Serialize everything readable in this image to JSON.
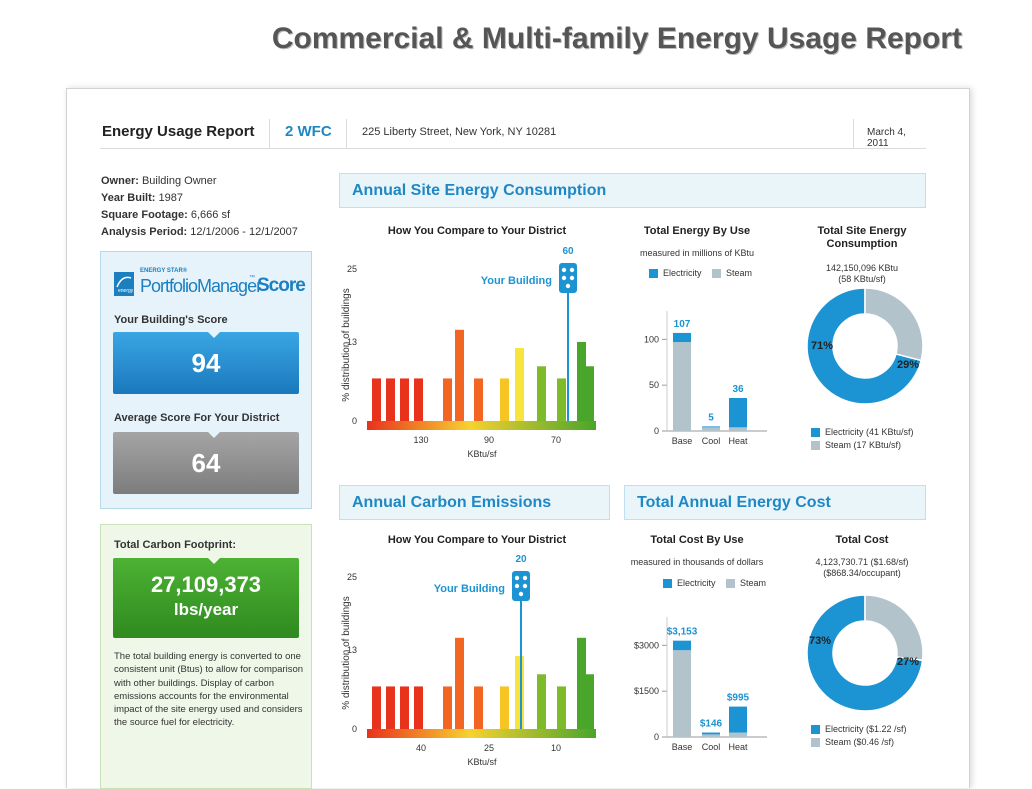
{
  "page_title": "Commercial & Multi-family Energy Usage Report",
  "header": {
    "report_label": "Energy Usage Report",
    "building_code": "2 WFC",
    "address": "225 Liberty Street, New York, NY 10281",
    "date": "March 4, 2011"
  },
  "info": {
    "owner_label": "Owner:",
    "owner": "Building Owner",
    "year_label": "Year Built:",
    "year": "1987",
    "sqft_label": "Square Footage:",
    "sqft": "6,666 sf",
    "period_label": "Analysis Period:",
    "period": "12/1/2006 - 12/1/2007"
  },
  "score": {
    "logo_small": "ENERGY STAR®",
    "logo_main": "PortfolioManager",
    "logo_tm": "™",
    "logo_score": "Score",
    "your_label": "Your Building's Score",
    "your_value": "94",
    "avg_label": "Average Score For Your District",
    "avg_value": "64"
  },
  "carbon": {
    "label": "Total Carbon Footprint:",
    "value": "27,109,373",
    "unit": "lbs/year",
    "note": "The total building energy is converted to one consistent unit (Btus) to allow for comparison with other buildings. Display of carbon emissions accounts for the environmental impact of the site energy used and considers the source fuel for electricity."
  },
  "colors": {
    "blue": "#1c93d2",
    "grey": "#b3c3cb",
    "title_blue": "#1f88c4",
    "green": "#3f9d29"
  },
  "sections": {
    "energy": {
      "title": "Annual Site Energy Consumption",
      "compare_title": "How You Compare to Your District",
      "ylabel": "% distribution of buildings",
      "xlabel": "KBtu/sf",
      "yticks": [
        "25",
        "13",
        "0"
      ],
      "xticks": [
        "130",
        "90",
        "70"
      ],
      "your_building": "Your Building",
      "your_value": "60",
      "use_title": "Total Energy By Use",
      "use_sub": "measured in millions of KBtu",
      "legend_elec": "Electricity",
      "legend_steam": "Steam",
      "use_yticks": [
        "100",
        "50",
        "0"
      ],
      "use_cats": [
        "Base",
        "Cool",
        "Heat"
      ],
      "use_labels": [
        "107",
        "5",
        "36"
      ],
      "total_title": "Total Site Energy Consumption",
      "total_line1": "142,150,096 KBtu",
      "total_line2": "(58 KBtu/sf)",
      "pct_elec": "71%",
      "pct_steam": "29%",
      "donut_leg_elec": "Electricity (41 KBtu/sf)",
      "donut_leg_steam": "Steam (17 KBtu/sf)"
    },
    "carbon": {
      "title": "Annual Carbon Emissions",
      "compare_title": "How You Compare to Your District",
      "ylabel": "% distribution of buildings",
      "xlabel": "KBtu/sf",
      "yticks": [
        "25",
        "13",
        "0"
      ],
      "xticks": [
        "40",
        "25",
        "10"
      ],
      "your_building": "Your Building",
      "your_value": "20"
    },
    "cost": {
      "title": "Total Annual Energy Cost",
      "use_title": "Total Cost By Use",
      "use_sub": "measured in thousands of dollars",
      "legend_elec": "Electricity",
      "legend_steam": "Steam",
      "use_yticks": [
        "$3000",
        "$1500",
        "0"
      ],
      "use_cats": [
        "Base",
        "Cool",
        "Heat"
      ],
      "use_labels": [
        "$3,153",
        "$146",
        "$995"
      ],
      "total_title": "Total Cost",
      "total_line1": "4,123,730.71 ($1.68/sf)",
      "total_line2": "($868.34/occupant)",
      "pct_elec": "73%",
      "pct_steam": "27%",
      "donut_leg_elec": "Electricity ($1.22 /sf)",
      "donut_leg_steam": "Steam ($0.46 /sf)"
    }
  },
  "chart_data": [
    {
      "type": "bar",
      "name": "energy-district",
      "ylabel": "% distribution of buildings",
      "xlabel": "KBtu/sf",
      "ylim": [
        0,
        25
      ],
      "values": [
        7,
        7,
        7,
        7,
        7,
        15,
        7,
        7,
        12,
        9,
        7,
        13,
        9
      ],
      "colors": [
        "#e8321c",
        "#e8321c",
        "#e8321c",
        "#e8321c",
        "#f26522",
        "#f26522",
        "#f26522",
        "#f7c523",
        "#f7e43c",
        "#7dbb2a",
        "#7dbb2a",
        "#4aa52b",
        "#4aa52b"
      ],
      "marker_value": 60
    },
    {
      "type": "bar",
      "name": "carbon-district",
      "ylabel": "% distribution of buildings",
      "xlabel": "KBtu/sf",
      "ylim": [
        0,
        25
      ],
      "values": [
        7,
        7,
        7,
        7,
        7,
        15,
        7,
        7,
        12,
        9,
        7,
        15,
        9
      ],
      "colors": [
        "#e8321c",
        "#e8321c",
        "#e8321c",
        "#e8321c",
        "#f26522",
        "#f26522",
        "#f26522",
        "#f7c523",
        "#f7e43c",
        "#7dbb2a",
        "#7dbb2a",
        "#4aa52b",
        "#4aa52b"
      ],
      "marker_value": 20
    },
    {
      "type": "bar",
      "name": "energy-by-use",
      "categories": [
        "Base",
        "Cool",
        "Heat"
      ],
      "ylim": [
        0,
        120
      ],
      "series": [
        {
          "name": "Electricity",
          "values": [
            10,
            1,
            32
          ]
        },
        {
          "name": "Steam",
          "values": [
            97,
            4,
            4
          ]
        }
      ]
    },
    {
      "type": "bar",
      "name": "cost-by-use",
      "categories": [
        "Base",
        "Cool",
        "Heat"
      ],
      "ylim": [
        0,
        3600
      ],
      "series": [
        {
          "name": "Electricity",
          "values": [
            313,
            60,
            850
          ]
        },
        {
          "name": "Steam",
          "values": [
            2840,
            86,
            145
          ]
        }
      ]
    },
    {
      "type": "pie",
      "name": "energy-total",
      "labels": [
        "Electricity",
        "Steam"
      ],
      "values": [
        71,
        29
      ]
    },
    {
      "type": "pie",
      "name": "cost-total",
      "labels": [
        "Electricity",
        "Steam"
      ],
      "values": [
        73,
        27
      ]
    }
  ]
}
